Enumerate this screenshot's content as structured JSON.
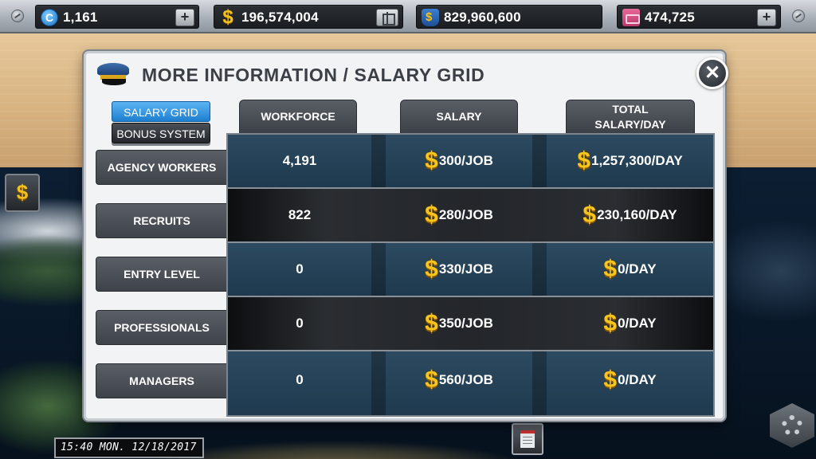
{
  "topbar": {
    "resources": [
      {
        "name": "coins",
        "icon": "c-coin-icon",
        "value": "1,161"
      },
      {
        "name": "cash",
        "icon": "dollar-icon",
        "value": "196,574,004"
      },
      {
        "name": "bank",
        "icon": "money-bag-icon",
        "value": "829,960,600"
      },
      {
        "name": "tickets",
        "icon": "ticket-icon",
        "value": "474,725"
      }
    ]
  },
  "panel": {
    "title": "MORE INFORMATION / SALARY GRID",
    "close_label": "✕",
    "tabs": [
      {
        "label": "SALARY GRID",
        "active": true
      },
      {
        "label": "BONUS SYSTEM",
        "active": false
      }
    ],
    "columns": [
      "WORKFORCE",
      "SALARY",
      "TOTAL SALARY/DAY"
    ],
    "rows": [
      {
        "label": "AGENCY WORKERS",
        "workforce": "4,191",
        "salary": "300/JOB",
        "total": "1,257,300/DAY"
      },
      {
        "label": "RECRUITS",
        "workforce": "822",
        "salary": "280/JOB",
        "total": "230,160/DAY"
      },
      {
        "label": "ENTRY LEVEL",
        "workforce": "0",
        "salary": "330/JOB",
        "total": "0/DAY"
      },
      {
        "label": "PROFESSIONALS",
        "workforce": "0",
        "salary": "350/JOB",
        "total": "0/DAY"
      },
      {
        "label": "MANAGERS",
        "workforce": "0",
        "salary": "560/JOB",
        "total": "0/DAY"
      }
    ],
    "currency_symbol": "$"
  },
  "side": {
    "finance_button_label": "$",
    "clock": "15:40 MON. 12/18/2017"
  },
  "colors": {
    "accent_blue": "#1e7fd0",
    "coin_gold": "#f6c61e",
    "grid_blue": "#2c4a60"
  }
}
